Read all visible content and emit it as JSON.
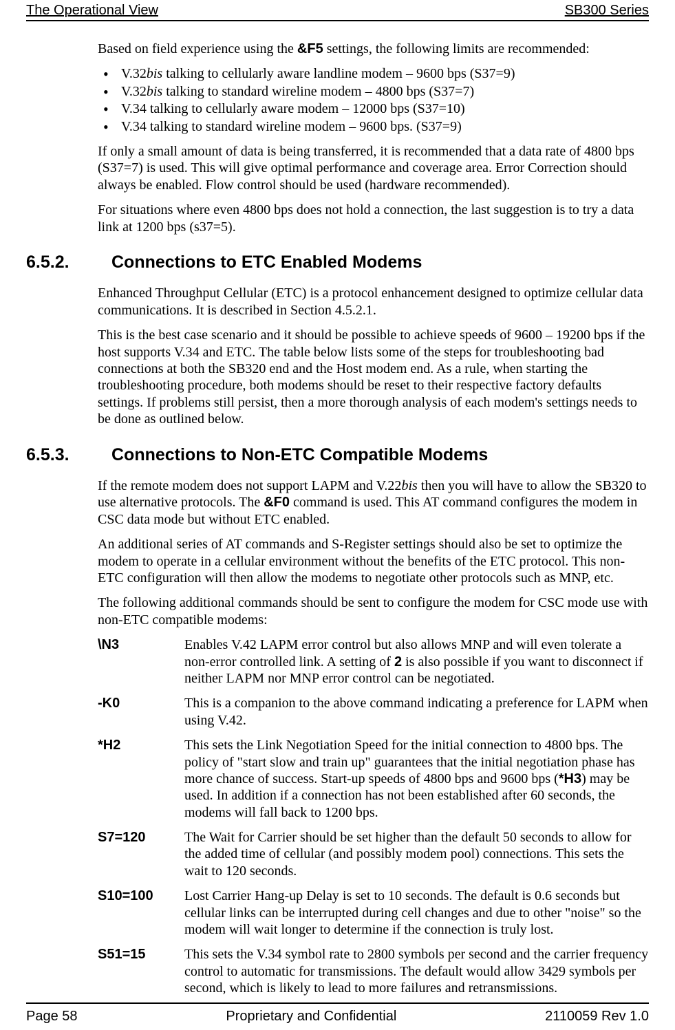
{
  "header": {
    "left": "The Operational View",
    "right": "SB300 Series",
    "underline": true
  },
  "footer": {
    "left": "Page 58",
    "center": "Proprietary and Confidential",
    "right": "2110059 Rev 1.0"
  },
  "intro": {
    "lead_pre": "Based on field experience using the ",
    "lead_bold": "&F5",
    "lead_post": " settings, the following limits are recommended:"
  },
  "bullets": [
    {
      "pre": "V.32",
      "it": "bis",
      "post": " talking to cellularly aware landline modem – 9600 bps (S37=9)"
    },
    {
      "pre": "V.32",
      "it": "bis",
      "post": " talking to standard wireline modem – 4800 bps (S37=7)"
    },
    {
      "pre": "V.34 talking to cellularly aware modem – 12000 bps (S37=10)",
      "it": "",
      "post": ""
    },
    {
      "pre": "V.34 talking to standard wireline modem – 9600 bps. (S37=9)",
      "it": "",
      "post": ""
    }
  ],
  "paras": {
    "p1": "If only a small amount of data is being transferred, it is recommended that a data rate of 4800 bps (S37=7) is used.  This will give optimal performance and coverage area.  Error Correction should always be enabled.  Flow control should be used (hardware recommended).",
    "p2": "For situations where even 4800 bps does not hold a connection, the last suggestion is to try a data link at 1200 bps (s37=5)."
  },
  "sec652": {
    "num": "6.5.2.",
    "title": "Connections to ETC Enabled Modems",
    "p1": "Enhanced Throughput Cellular (ETC) is a protocol enhancement designed to optimize cellular data communications.  It is described in Section 4.5.2.1.",
    "p2": "This is the best case scenario and it should be possible to achieve speeds of 9600 – 19200 bps if the host supports V.34 and ETC.  The table below lists some of the steps for troubleshooting bad connections at both the SB320 end and the Host modem end.  As a rule, when starting the troubleshooting procedure, both modems should be reset to their respective factory defaults settings.  If problems still persist, then a more thorough analysis of each modem's settings needs to be done as outlined below."
  },
  "sec653": {
    "num": "6.5.3.",
    "title": "Connections to Non-ETC Compatible Modems",
    "p1_pre": "If the remote modem does not support LAPM and V.22",
    "p1_it": "bis",
    "p1_mid": " then you will have to allow the SB320 to use alternative protocols.  The ",
    "p1_bold": "&F0",
    "p1_post": " command is used.  This AT command configures the modem in CSC data mode but without ETC enabled.",
    "p2": "An additional series of AT commands and S-Register settings should also be set to optimize the modem to operate in a cellular environment without the benefits of the ETC protocol.  This non-ETC configuration will then allow the modems to negotiate other protocols such as MNP, etc.",
    "p3": "The following additional commands should be sent to configure the modem for CSC mode use with non-ETC compatible modems:"
  },
  "commands": [
    {
      "label": "\\N3",
      "desc_pre": "Enables V.42 LAPM error control but also allows MNP and will even tolerate a non-error controlled link.  A setting of ",
      "desc_bold": "2",
      "desc_post": " is also possible if you want to disconnect if neither LAPM nor MNP error control can be negotiated."
    },
    {
      "label": "-K0",
      "desc_pre": "This is a companion to the above command indicating a preference for LAPM when using V.42.",
      "desc_bold": "",
      "desc_post": ""
    },
    {
      "label": "*H2",
      "desc_pre": "This sets the Link Negotiation Speed for the initial connection to 4800 bps.  The policy of \"start slow and train up\" guarantees that the initial negotiation phase has more chance of success.  Start-up speeds of 4800 bps and 9600 bps (",
      "desc_bold": "*H3",
      "desc_post": ") may be used.  In addition if a connection has not been established after 60 seconds, the modems will fall back to 1200 bps."
    },
    {
      "label": "S7=120",
      "desc_pre": "The Wait for Carrier should be set higher than the default 50 seconds to allow for the added time of cellular (and possibly modem pool) connections.  This sets the wait to 120 seconds.",
      "desc_bold": "",
      "desc_post": ""
    },
    {
      "label": "S10=100",
      "desc_pre": "Lost Carrier Hang-up Delay is set to 10 seconds.  The default is 0.6 seconds but cellular links can be interrupted during cell changes and due to other \"noise\" so the modem will wait longer to determine if the connection is truly lost.",
      "desc_bold": "",
      "desc_post": ""
    },
    {
      "label": "S51=15",
      "desc_pre": "This sets the V.34 symbol rate to 2800 symbols per second and the carrier frequency control to automatic for transmissions.  The default would allow 3429 symbols per second, which is likely to lead to more failures and retransmissions.",
      "desc_bold": "",
      "desc_post": ""
    }
  ]
}
